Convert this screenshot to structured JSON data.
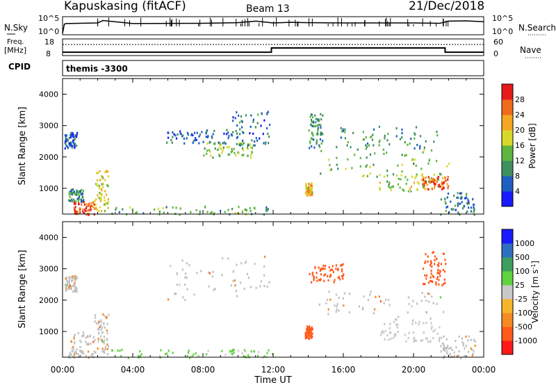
{
  "header": {
    "station": "Kapuskasing (fitACF)",
    "beam": "Beam 13",
    "date": "21/Dec/2018"
  },
  "noise_panel": {
    "left_label": "N.Sky",
    "right_label": "N.Search",
    "left_ticks": [
      "10^5",
      "10^0"
    ],
    "right_ticks": [
      "10^5",
      "10^0"
    ]
  },
  "freq_panel": {
    "left_label_top": "Freq.",
    "left_label_bottom": "[MHz]",
    "right_label": "Nave",
    "left_ticks": [
      "18",
      "8"
    ],
    "right_ticks": [
      "60",
      "0"
    ]
  },
  "cpid": {
    "label": "CPID",
    "value": "themis -3300"
  },
  "x_axis": {
    "label": "Time UT",
    "ticks": [
      "00:00",
      "04:00",
      "08:00",
      "12:00",
      "16:00",
      "20:00",
      "00:00"
    ]
  },
  "colors": {
    "power_scale": [
      "#1a1aff",
      "#1f5fbf",
      "#3f8f5f",
      "#5fb53f",
      "#d8d82a",
      "#f5a623",
      "#f06a1a",
      "#e61a1a"
    ],
    "velocity_scale": [
      "#ff1a1a",
      "#ff5a1a",
      "#f58a23",
      "#f5b52a",
      "#c8c8c8",
      "#5fd23f",
      "#3f9f5f",
      "#2f6fbf",
      "#1a1aff"
    ],
    "ground_scatter": "#c0c0c0"
  },
  "chart_data": [
    {
      "type": "line",
      "name_ref": "noise",
      "x_unit": "hours UT",
      "xlim": [
        0,
        24
      ],
      "series": [
        {
          "name": "N.Sky",
          "x": [
            0,
            0.1,
            0.2,
            2,
            2.3,
            4,
            8,
            10,
            11,
            12,
            13,
            14,
            16,
            20,
            21.5,
            22,
            23,
            24
          ],
          "values": [
            0,
            3.0,
            3.2,
            3.4,
            4.2,
            3.2,
            3.3,
            3.5,
            4.0,
            3.4,
            3.6,
            3.5,
            3.4,
            3.4,
            3.3,
            4.0,
            4.1,
            3.8
          ]
        }
      ]
    },
    {
      "type": "line",
      "name_ref": "frequency",
      "x_unit": "hours UT",
      "ylim": [
        8,
        18
      ],
      "series": [
        {
          "name": "Freq.",
          "x": [
            0,
            11.9,
            11.9,
            21.8,
            21.8,
            24
          ],
          "values": [
            10.2,
            10.2,
            13.0,
            13.0,
            10.2,
            10.2
          ]
        }
      ]
    },
    {
      "type": "heatmap",
      "name_ref": "power",
      "xlabel": "Time UT",
      "ylabel": "Slant Range [km]",
      "colorbar_label": "Power [dB]",
      "xlim": [
        0,
        24
      ],
      "ylim": [
        180,
        4500
      ],
      "yticks": [
        1000,
        2000,
        3000,
        4000
      ],
      "colorbar_ticks": [
        4,
        8,
        12,
        16,
        20,
        24,
        28
      ],
      "colorbar_range": [
        0,
        32
      ],
      "regions": [
        {
          "t": [
            0.1,
            0.8
          ],
          "r": [
            2300,
            2800
          ],
          "power": 6
        },
        {
          "t": [
            0.3,
            1.2
          ],
          "r": [
            600,
            1000
          ],
          "power": 10
        },
        {
          "t": [
            0.6,
            1.8
          ],
          "r": [
            180,
            600
          ],
          "power": 28
        },
        {
          "t": [
            1.8,
            2.6
          ],
          "r": [
            300,
            1600
          ],
          "power": 18
        },
        {
          "t": [
            2.6,
            12.0
          ],
          "r": [
            180,
            450
          ],
          "power": 12
        },
        {
          "t": [
            5.8,
            9.5
          ],
          "r": [
            2450,
            2900
          ],
          "power": 6
        },
        {
          "t": [
            8.0,
            10.8
          ],
          "r": [
            2000,
            2500
          ],
          "power": 14
        },
        {
          "t": [
            9.5,
            11.8
          ],
          "r": [
            2400,
            3500
          ],
          "power": 8
        },
        {
          "t": [
            13.8,
            14.2
          ],
          "r": [
            800,
            1200
          ],
          "power": 20
        },
        {
          "t": [
            14.0,
            14.8
          ],
          "r": [
            2300,
            3400
          ],
          "power": 10
        },
        {
          "t": [
            14.5,
            22.0
          ],
          "r": [
            1400,
            2300
          ],
          "power": 14
        },
        {
          "t": [
            15.5,
            21.5
          ],
          "r": [
            2300,
            3000
          ],
          "power": 10
        },
        {
          "t": [
            18.0,
            21.8
          ],
          "r": [
            900,
            1500
          ],
          "power": 16
        },
        {
          "t": [
            20.5,
            22.0
          ],
          "r": [
            1000,
            1400
          ],
          "power": 26
        },
        {
          "t": [
            21.5,
            23.5
          ],
          "r": [
            180,
            900
          ],
          "power": 8
        }
      ]
    },
    {
      "type": "heatmap",
      "name_ref": "velocity",
      "xlabel": "Time UT",
      "ylabel": "Slant Range [km]",
      "colorbar_label": "Velocity [m s^-1]",
      "xlim": [
        0,
        24
      ],
      "ylim": [
        180,
        4500
      ],
      "yticks": [
        1000,
        2000,
        3000,
        4000
      ],
      "colorbar_ticks": [
        "1000",
        "500",
        "100",
        "25",
        "-25",
        "-100",
        "-500",
        "-1000"
      ],
      "regions": [
        {
          "t": [
            0.1,
            0.8
          ],
          "r": [
            2300,
            2800
          ],
          "velocity": 0
        },
        {
          "t": [
            0.3,
            1.8
          ],
          "r": [
            180,
            1000
          ],
          "velocity": 0
        },
        {
          "t": [
            1.8,
            2.6
          ],
          "r": [
            300,
            1600
          ],
          "velocity": 0
        },
        {
          "t": [
            2.6,
            12.0
          ],
          "r": [
            180,
            450
          ],
          "velocity": 120
        },
        {
          "t": [
            5.8,
            11.8
          ],
          "r": [
            2000,
            3500
          ],
          "velocity": 0
        },
        {
          "t": [
            13.8,
            14.2
          ],
          "r": [
            800,
            1200
          ],
          "velocity": -200
        },
        {
          "t": [
            14.0,
            16.0
          ],
          "r": [
            2600,
            3200
          ],
          "velocity": -300
        },
        {
          "t": [
            14.5,
            22.0
          ],
          "r": [
            1400,
            2300
          ],
          "velocity": 0
        },
        {
          "t": [
            20.5,
            21.8
          ],
          "r": [
            2500,
            3600
          ],
          "velocity": -400
        },
        {
          "t": [
            18.0,
            21.5
          ],
          "r": [
            700,
            1400
          ],
          "velocity": 60
        },
        {
          "t": [
            21.5,
            23.5
          ],
          "r": [
            180,
            900
          ],
          "velocity": 0
        }
      ]
    }
  ]
}
